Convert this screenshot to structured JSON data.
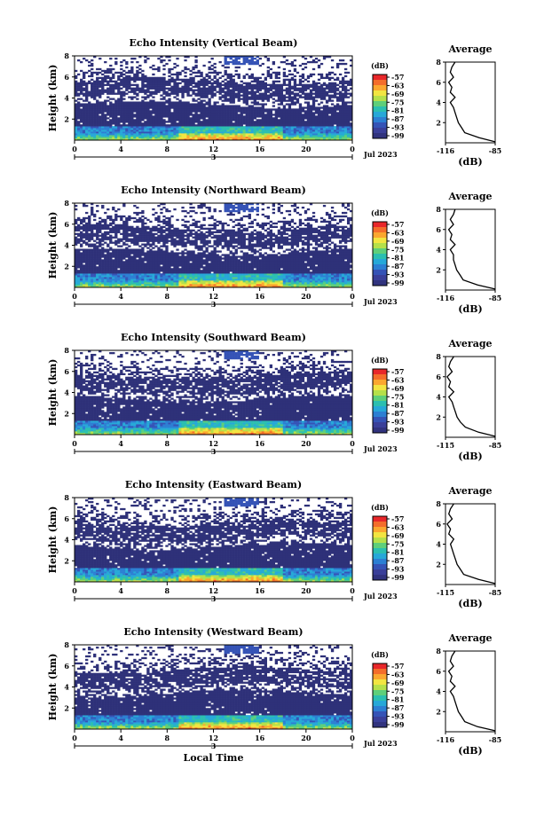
{
  "figure": {
    "time_unit_label": "3",
    "date_label": "Jul 2023",
    "xlabel": "Local Time"
  },
  "colorbar": {
    "unit": "(dB)",
    "ticks": [
      "-57",
      "-63",
      "-69",
      "-75",
      "-81",
      "-87",
      "-93",
      "-99"
    ],
    "colors": [
      "#e8272a",
      "#f46d2b",
      "#fba72f",
      "#f2e541",
      "#b5e04a",
      "#5ecf7a",
      "#2bbfb0",
      "#26a8d8",
      "#2c7fd3",
      "#3553b6",
      "#3a3f99",
      "#31337e"
    ]
  },
  "chart_data": [
    {
      "type": "heatmap",
      "title": "Echo Intensity (Vertical Beam)",
      "ylabel": "Height (km)",
      "x_ticks": [
        "0",
        "4",
        "8",
        "12",
        "16",
        "20",
        "0"
      ],
      "y_ticks": [
        "2",
        "4",
        "6",
        "8"
      ],
      "xlim": [
        0,
        24
      ],
      "ylim": [
        0,
        8
      ],
      "clim": [
        -99,
        -57
      ],
      "average_profile": {
        "title": "Average",
        "xlabel": "(dB)",
        "x_ticks": [
          "-116",
          "-85"
        ],
        "y_ticks": [
          "2",
          "4",
          "6",
          "8"
        ],
        "height_km": [
          0.1,
          0.5,
          1.0,
          1.5,
          2.0,
          2.5,
          3.0,
          3.5,
          4.0,
          4.5,
          5.0,
          5.5,
          6.0,
          6.5,
          7.0,
          7.5,
          8.0
        ],
        "db": [
          -85,
          -95,
          -104,
          -106,
          -108,
          -109,
          -110,
          -111,
          -113,
          -110,
          -113,
          -112,
          -114,
          -111,
          -113,
          -112,
          -110
        ]
      }
    },
    {
      "type": "heatmap",
      "title": "Echo Intensity (Northward Beam)",
      "ylabel": "Height (km)",
      "x_ticks": [
        "0",
        "4",
        "8",
        "12",
        "16",
        "20",
        "0"
      ],
      "y_ticks": [
        "2",
        "4",
        "6",
        "8"
      ],
      "xlim": [
        0,
        24
      ],
      "ylim": [
        0,
        8
      ],
      "clim": [
        -99,
        -57
      ],
      "average_profile": {
        "title": "Average",
        "xlabel": "(dB)",
        "x_ticks": [
          "-116",
          "-85"
        ],
        "y_ticks": [
          "2",
          "4",
          "6",
          "8"
        ],
        "height_km": [
          0.1,
          0.5,
          1.0,
          1.5,
          2.0,
          2.5,
          3.0,
          3.5,
          4.0,
          4.5,
          5.0,
          5.5,
          6.0,
          6.5,
          7.0,
          7.5,
          8.0
        ],
        "db": [
          -85,
          -96,
          -105,
          -107,
          -109,
          -110,
          -111,
          -111,
          -113,
          -110,
          -113,
          -112,
          -114,
          -111,
          -113,
          -111,
          -110
        ]
      }
    },
    {
      "type": "heatmap",
      "title": "Echo Intensity (Southward Beam)",
      "ylabel": "Height (km)",
      "x_ticks": [
        "0",
        "4",
        "8",
        "12",
        "16",
        "20",
        "0"
      ],
      "y_ticks": [
        "2",
        "4",
        "6",
        "8"
      ],
      "xlim": [
        0,
        24
      ],
      "ylim": [
        0,
        8
      ],
      "clim": [
        -99,
        -57
      ],
      "average_profile": {
        "title": "Average",
        "xlabel": "(dB)",
        "x_ticks": [
          "-115",
          "-85"
        ],
        "y_ticks": [
          "2",
          "4",
          "6",
          "8"
        ],
        "height_km": [
          0.1,
          0.5,
          1.0,
          1.5,
          2.0,
          2.5,
          3.0,
          3.5,
          4.0,
          4.5,
          5.0,
          5.5,
          6.0,
          6.5,
          7.0,
          7.5,
          8.0
        ],
        "db": [
          -85,
          -95,
          -103,
          -106,
          -108,
          -109,
          -110,
          -111,
          -113,
          -110,
          -113,
          -112,
          -114,
          -111,
          -113,
          -112,
          -110
        ]
      }
    },
    {
      "type": "heatmap",
      "title": "Echo Intensity (Eastward Beam)",
      "ylabel": "Height (km)",
      "x_ticks": [
        "0",
        "4",
        "8",
        "12",
        "16",
        "20",
        "0"
      ],
      "y_ticks": [
        "2",
        "4",
        "6",
        "8"
      ],
      "xlim": [
        0,
        24
      ],
      "ylim": [
        0,
        8
      ],
      "clim": [
        -99,
        -57
      ],
      "average_profile": {
        "title": "Average",
        "xlabel": "(dB)",
        "x_ticks": [
          "-115",
          "-85"
        ],
        "y_ticks": [
          "2",
          "4",
          "6",
          "8"
        ],
        "height_km": [
          0.1,
          0.5,
          1.0,
          1.5,
          2.0,
          2.5,
          3.0,
          3.5,
          4.0,
          4.5,
          5.0,
          5.5,
          6.0,
          6.5,
          7.0,
          7.5,
          8.0
        ],
        "db": [
          -85,
          -95,
          -104,
          -106,
          -108,
          -109,
          -110,
          -111,
          -112,
          -110,
          -113,
          -112,
          -114,
          -111,
          -113,
          -112,
          -110
        ]
      }
    },
    {
      "type": "heatmap",
      "title": "Echo Intensity (Westward Beam)",
      "ylabel": "Height (km)",
      "x_ticks": [
        "0",
        "4",
        "8",
        "12",
        "16",
        "20",
        "0"
      ],
      "y_ticks": [
        "2",
        "4",
        "6",
        "8"
      ],
      "xlim": [
        0,
        24
      ],
      "ylim": [
        0,
        8
      ],
      "clim": [
        -99,
        -57
      ],
      "average_profile": {
        "title": "Average",
        "xlabel": "(dB)",
        "x_ticks": [
          "-116",
          "-85"
        ],
        "y_ticks": [
          "2",
          "4",
          "6",
          "8"
        ],
        "height_km": [
          0.1,
          0.5,
          1.0,
          1.5,
          2.0,
          2.5,
          3.0,
          3.5,
          4.0,
          4.5,
          5.0,
          5.5,
          6.0,
          6.5,
          7.0,
          7.5,
          8.0
        ],
        "db": [
          -85,
          -96,
          -104,
          -106,
          -108,
          -109,
          -110,
          -111,
          -113,
          -110,
          -113,
          -112,
          -114,
          -111,
          -113,
          -112,
          -110
        ]
      }
    }
  ]
}
